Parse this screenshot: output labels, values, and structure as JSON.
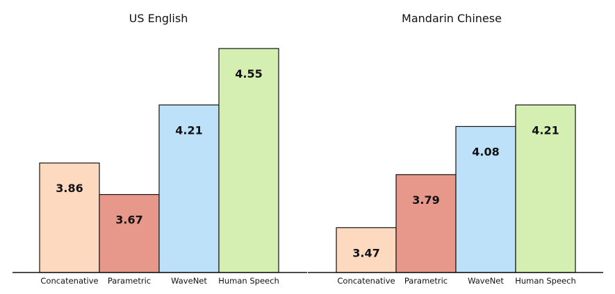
{
  "chart_data": [
    {
      "type": "bar",
      "title": "US English",
      "xlabel": "",
      "ylabel": "",
      "categories": [
        "Concatenative",
        "Parametric",
        "WaveNet",
        "Human Speech"
      ],
      "values": [
        3.86,
        3.67,
        4.21,
        4.55
      ],
      "colors": [
        "#fdd9bf",
        "#e8988a",
        "#bde1f9",
        "#d5eeb2"
      ],
      "ylim": [
        3.2,
        4.6
      ],
      "grid": false,
      "legend": "none"
    },
    {
      "type": "bar",
      "title": "Mandarin Chinese",
      "xlabel": "",
      "ylabel": "",
      "categories": [
        "Concatenative",
        "Parametric",
        "WaveNet",
        "Human Speech"
      ],
      "values": [
        3.47,
        3.79,
        4.08,
        4.21
      ],
      "colors": [
        "#fdd9bf",
        "#e8988a",
        "#bde1f9",
        "#d5eeb2"
      ],
      "ylim": [
        3.2,
        4.6
      ],
      "grid": false,
      "legend": "none"
    }
  ]
}
